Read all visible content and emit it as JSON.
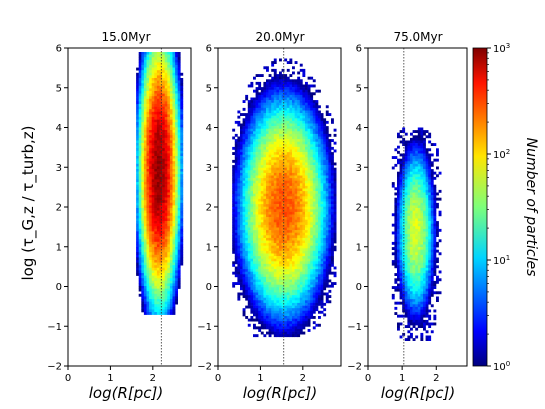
{
  "chart_data": {
    "type": "heatmap",
    "ylabel": "log (τ_G,z / τ_turb,z)",
    "ylim": [
      -2,
      6
    ],
    "yticks": [
      -2,
      -1,
      0,
      1,
      2,
      3,
      4,
      5,
      6
    ],
    "colorbar": {
      "label": "Number of particles",
      "scale": "log",
      "range": [
        1,
        1000
      ],
      "ticks": [
        {
          "value": 1,
          "label": "10^0"
        },
        {
          "value": 10,
          "label": "10^1"
        },
        {
          "value": 100,
          "label": "10^2"
        },
        {
          "value": 1000,
          "label": "10^3"
        }
      ]
    },
    "panels": [
      {
        "title": "15.0Myr",
        "xlabel": "log(R[pc])",
        "xlim": [
          0,
          2.9
        ],
        "xticks": [
          0,
          1,
          2
        ],
        "vline_x": 2.2,
        "density": {
          "x_center": 2.15,
          "x_sigma": 0.17,
          "y_center": 2.9,
          "y_sigma": 1.2,
          "y_extent": [
            -0.7,
            5.9
          ],
          "peak_count": 900
        }
      },
      {
        "title": "20.0Myr",
        "xlabel": "log(R[pc])",
        "xlim": [
          0,
          2.9
        ],
        "xticks": [
          0,
          1,
          2
        ],
        "vline_x": 1.55,
        "density": {
          "x_center": 1.55,
          "x_sigma": 0.38,
          "y_center": 2.0,
          "y_sigma": 1.0,
          "y_extent": [
            -1.2,
            5.8
          ],
          "peak_count": 250
        }
      },
      {
        "title": "75.0Myr",
        "xlabel": "log(R[pc])",
        "xlim": [
          0,
          2.9
        ],
        "xticks": [
          0,
          1,
          2
        ],
        "vline_x": 1.05,
        "density": {
          "x_center": 1.4,
          "x_sigma": 0.22,
          "y_center": 1.4,
          "y_sigma": 0.85,
          "y_extent": [
            -1.3,
            4.0
          ],
          "peak_count": 60
        }
      }
    ]
  }
}
